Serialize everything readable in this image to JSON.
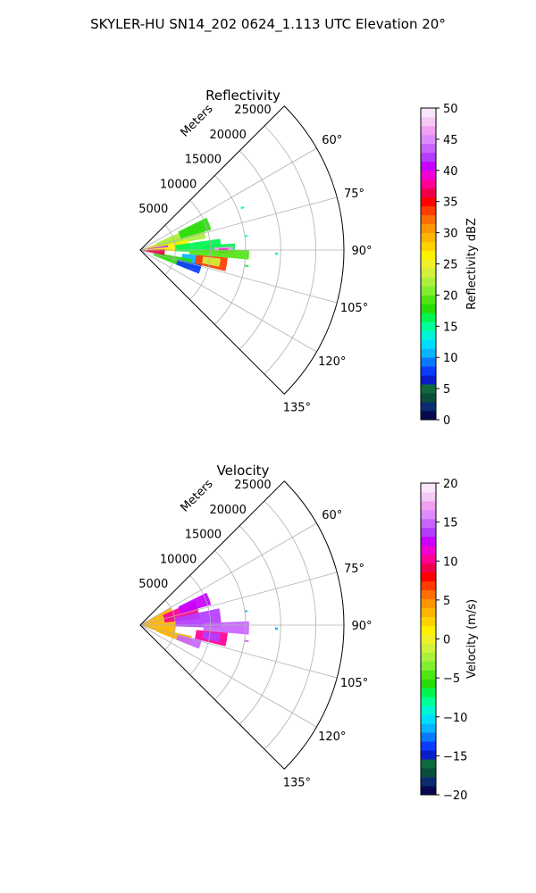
{
  "suptitle": "SKYLER-HU  SN14_202  0624_1.113 UTC Elevation 20°",
  "chart_data": [
    {
      "type": "heatmap",
      "subtype": "polar-sector-ppi",
      "title": "Reflectivity",
      "range_label": "Meters",
      "range_ticks": [
        5000,
        10000,
        15000,
        20000,
        25000
      ],
      "range_ticks_text": [
        "5000",
        "10000",
        "15000",
        "20000",
        "25000"
      ],
      "range_max": 29000,
      "azimuth_range_deg": [
        45,
        135
      ],
      "azimuth_ticks": [
        60,
        75,
        90,
        105,
        120,
        135
      ],
      "azimuth_ticks_text": [
        "60°",
        "75°",
        "90°",
        "105°",
        "120°",
        "135°"
      ],
      "grid": true,
      "colorbar": {
        "label": "Reflectivity dBZ",
        "vmin": 0,
        "vmax": 50,
        "ticks": [
          0,
          5,
          10,
          15,
          20,
          25,
          30,
          35,
          40,
          45,
          50
        ],
        "ticks_text": [
          "0",
          "5",
          "10",
          "15",
          "20",
          "25",
          "30",
          "35",
          "40",
          "45",
          "50"
        ],
        "position": "right",
        "colormap": [
          "#07094e",
          "#0a2c6e",
          "#0b4d3d",
          "#0e6a3c",
          "#0a1ec8",
          "#0a3cff",
          "#0a78ff",
          "#08b4ff",
          "#00dcff",
          "#00f5d8",
          "#00ff96",
          "#00f550",
          "#28dc0a",
          "#50e614",
          "#82ee32",
          "#aaf03c",
          "#d2f03c",
          "#f0f028",
          "#fff000",
          "#ffd200",
          "#ffb400",
          "#ff9600",
          "#ff6e00",
          "#ff3c00",
          "#ff0000",
          "#f0004b",
          "#ff0096",
          "#f000d2",
          "#c800ff",
          "#b43cff",
          "#c864ff",
          "#dc8cff",
          "#f0a0f0",
          "#f5c8f5",
          "#fae6fa"
        ]
      },
      "echoes": [
        {
          "az": [
            70,
            82
          ],
          "r": [
            0,
            6500
          ],
          "value": 28
        },
        {
          "az": [
            66,
            80
          ],
          "r": [
            2500,
            9500
          ],
          "value": 22
        },
        {
          "az": [
            64,
            74
          ],
          "r": [
            6000,
            10500
          ],
          "value": 18
        },
        {
          "az": [
            78,
            92
          ],
          "r": [
            1000,
            7000
          ],
          "value": 26
        },
        {
          "az": [
            82,
            92
          ],
          "r": [
            5000,
            11500
          ],
          "value": 16
        },
        {
          "az": [
            86,
            90
          ],
          "r": [
            9000,
            13500
          ],
          "value": 17
        },
        {
          "az": [
            88,
            93
          ],
          "r": [
            10500,
            13200
          ],
          "value": 47
        },
        {
          "az": [
            89,
            92
          ],
          "r": [
            11200,
            12500
          ],
          "value": 38
        },
        {
          "az": [
            90,
            95
          ],
          "r": [
            7000,
            15500
          ],
          "value": 19
        },
        {
          "az": [
            95,
            108
          ],
          "r": [
            6000,
            9000
          ],
          "value": 10
        },
        {
          "az": [
            95,
            104
          ],
          "r": [
            8000,
            12500
          ],
          "value": 33
        },
        {
          "az": [
            96,
            102
          ],
          "r": [
            9000,
            11500
          ],
          "value": 24
        },
        {
          "az": [
            100,
            112
          ],
          "r": [
            2000,
            7500
          ],
          "value": 18
        },
        {
          "az": [
            104,
            112
          ],
          "r": [
            5500,
            9000
          ],
          "value": 8
        },
        {
          "az": [
            88,
            102
          ],
          "r": [
            0,
            3500
          ],
          "value": 36
        },
        {
          "az": [
            80,
            84
          ],
          "r": [
            1000,
            4000
          ],
          "value": 42
        },
        {
          "az": [
            82,
            83
          ],
          "r": [
            15000,
            15400
          ],
          "value": 14
        },
        {
          "az": [
            91,
            92
          ],
          "r": [
            19200,
            19600
          ],
          "value": 14
        },
        {
          "az": [
            98,
            99
          ],
          "r": [
            15000,
            15600
          ],
          "value": 16
        },
        {
          "az": [
            67,
            68
          ],
          "r": [
            15500,
            16000
          ],
          "value": 14
        }
      ]
    },
    {
      "type": "heatmap",
      "subtype": "polar-sector-ppi",
      "title": "Velocity",
      "range_label": "Meters",
      "range_ticks": [
        5000,
        10000,
        15000,
        20000,
        25000
      ],
      "range_ticks_text": [
        "5000",
        "10000",
        "15000",
        "20000",
        "25000"
      ],
      "range_max": 29000,
      "azimuth_range_deg": [
        45,
        135
      ],
      "azimuth_ticks": [
        60,
        75,
        90,
        105,
        120,
        135
      ],
      "azimuth_ticks_text": [
        "60°",
        "75°",
        "90°",
        "105°",
        "120°",
        "135°"
      ],
      "grid": true,
      "colorbar": {
        "label": "Velocity (m/s)",
        "vmin": -20,
        "vmax": 20,
        "ticks": [
          -20,
          -15,
          -10,
          -5,
          0,
          5,
          10,
          15,
          20
        ],
        "ticks_text": [
          "−20",
          "−15",
          "−10",
          "−5",
          "0",
          "5",
          "10",
          "15",
          "20"
        ],
        "position": "right",
        "colormap": [
          "#07094e",
          "#0a2c6e",
          "#0b4d3d",
          "#0e6a3c",
          "#0a1ec8",
          "#0a3cff",
          "#0a78ff",
          "#08b4ff",
          "#00dcff",
          "#00f5d8",
          "#00ff96",
          "#00f550",
          "#28dc0a",
          "#50e614",
          "#82ee32",
          "#aaf03c",
          "#d2f03c",
          "#f0f028",
          "#fff000",
          "#ffd200",
          "#ffb400",
          "#ff9600",
          "#ff6e00",
          "#ff3c00",
          "#ff0000",
          "#f0004b",
          "#ff0096",
          "#f000d2",
          "#c800ff",
          "#b43cff",
          "#c864ff",
          "#dc8cff",
          "#f0a0f0",
          "#f5c8f5",
          "#fae6fa"
        ]
      },
      "echoes": [
        {
          "az": [
            60,
            110
          ],
          "r": [
            0,
            5000
          ],
          "value": 3
        },
        {
          "az": [
            66,
            84
          ],
          "r": [
            3500,
            8500
          ],
          "value": 10
        },
        {
          "az": [
            64,
            74
          ],
          "r": [
            6000,
            10500
          ],
          "value": 12
        },
        {
          "az": [
            78,
            92
          ],
          "r": [
            5000,
            11500
          ],
          "value": 14
        },
        {
          "az": [
            88,
            95
          ],
          "r": [
            9000,
            15500
          ],
          "value": 15
        },
        {
          "az": [
            95,
            104
          ],
          "r": [
            8000,
            12500
          ],
          "value": 10
        },
        {
          "az": [
            96,
            102
          ],
          "r": [
            9000,
            11500
          ],
          "value": 14
        },
        {
          "az": [
            102,
            112
          ],
          "r": [
            2500,
            7500
          ],
          "value": 3
        },
        {
          "az": [
            104,
            112
          ],
          "r": [
            5500,
            9000
          ],
          "value": 15
        },
        {
          "az": [
            82,
            83
          ],
          "r": [
            15000,
            15400
          ],
          "value": -12
        },
        {
          "az": [
            91,
            92
          ],
          "r": [
            19200,
            19600
          ],
          "value": -12
        },
        {
          "az": [
            98,
            99
          ],
          "r": [
            15000,
            15600
          ],
          "value": 15
        }
      ]
    }
  ]
}
